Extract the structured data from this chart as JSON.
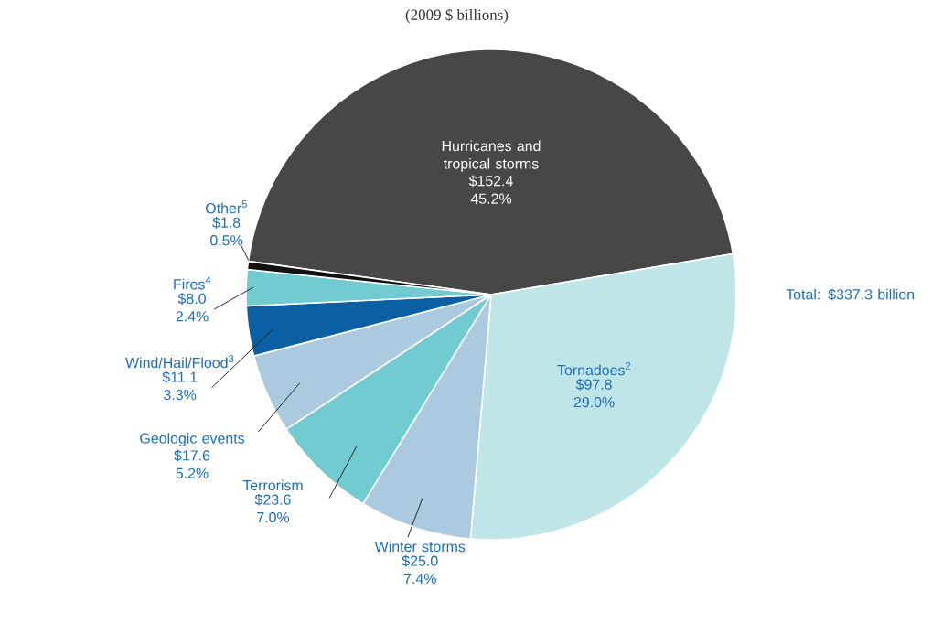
{
  "chart_data": {
    "type": "pie",
    "title": "(2009 $ billions)",
    "categories": [
      "Hurricanes and tropical storms",
      "Tornadoes$^{2}$",
      "Winter storms",
      "Terrorism",
      "Geologic events",
      "Wind/Hail/Flood$^{3}$",
      "Fires$^{4}$",
      "Other$^{5}$"
    ],
    "values": [
      152.4,
      97.8,
      25.0,
      23.6,
      17.6,
      11.1,
      8.0,
      1.8
    ],
    "value_labels": [
      "$152.4 45.2%",
      "$97.8 29.0%",
      "$25.0 7.4%",
      "$23.6 7.0%",
      "$17.6 5.2%",
      "$11.1 3.3%",
      "$8.0 2.4%",
      "$1.8 0.5%"
    ],
    "colors": [
      "#474747",
      "#bfe5e9",
      "#abcae0",
      "#72cbd1",
      "#abcae0",
      "#0a60a3",
      "#72cbd1",
      "#111111"
    ],
    "annotations": [
      "Total: $337.3 billion"
    ]
  }
}
